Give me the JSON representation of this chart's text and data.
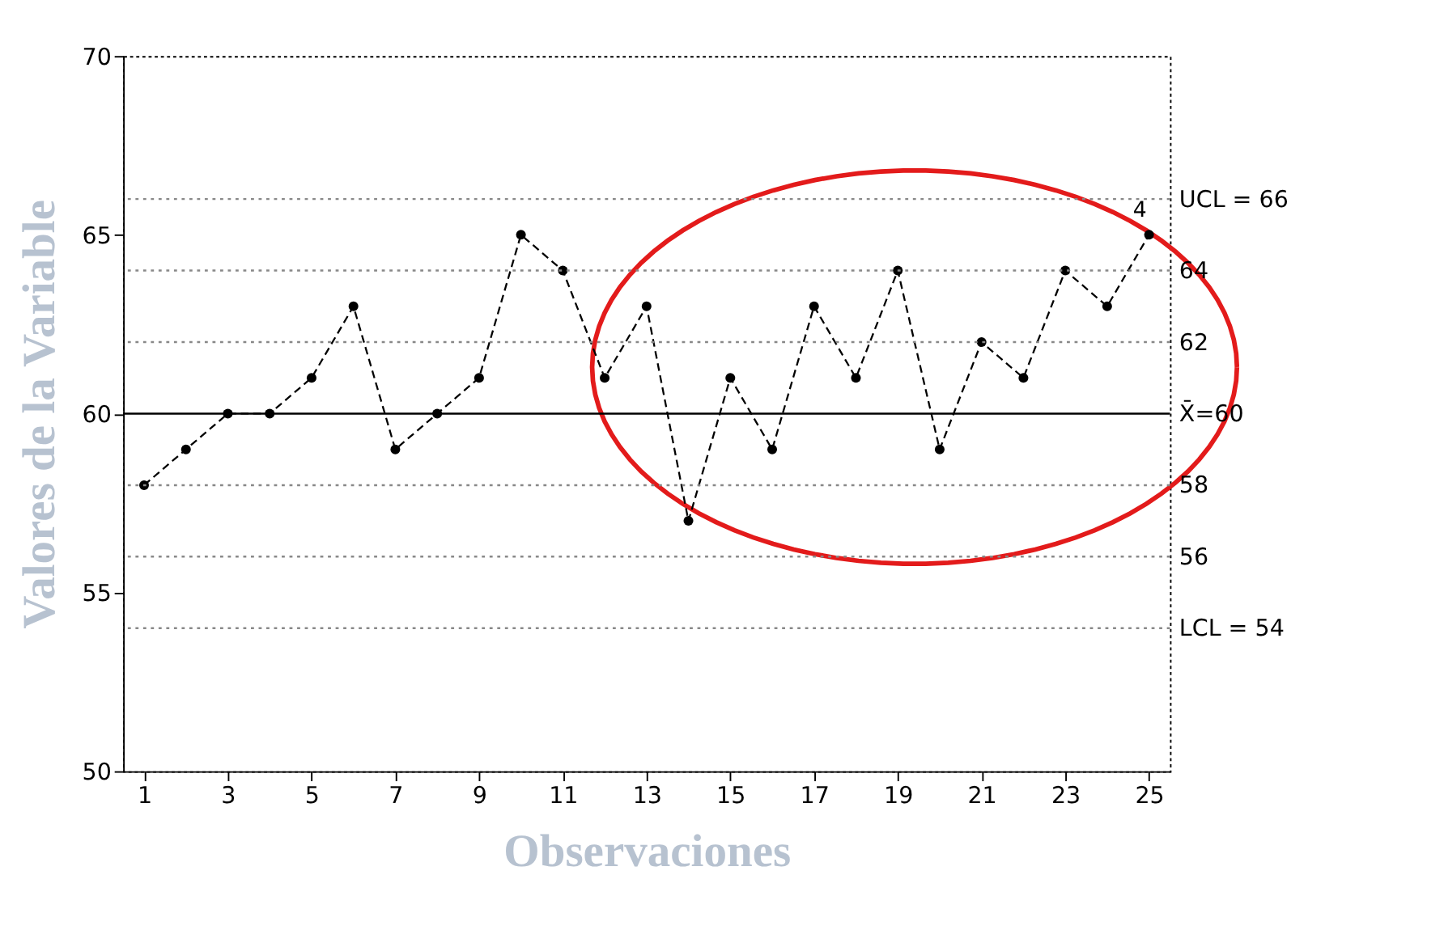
{
  "chart_data": {
    "type": "line",
    "xlabel": "Observaciones",
    "ylabel": "Valores de la Variable",
    "x": [
      1,
      2,
      3,
      4,
      5,
      6,
      7,
      8,
      9,
      10,
      11,
      12,
      13,
      14,
      15,
      16,
      17,
      18,
      19,
      20,
      21,
      22,
      23,
      24,
      25
    ],
    "series": [
      {
        "color": "#000000",
        "values": [
          58,
          59,
          60,
          60,
          61,
          63,
          59,
          60,
          61,
          65,
          64,
          61,
          63,
          57,
          61,
          59,
          63,
          61,
          64,
          59,
          62,
          61,
          64,
          63,
          65
        ]
      }
    ],
    "xlim": [
      0.5,
      25.5
    ],
    "xticks": [
      1,
      3,
      5,
      7,
      9,
      11,
      13,
      15,
      17,
      19,
      21,
      23,
      25
    ],
    "ylim": [
      50,
      70
    ],
    "yticks": [
      50,
      55,
      60,
      65,
      70
    ],
    "ref_lines": [
      {
        "axis": "y",
        "value": 66,
        "label": "UCL = 66",
        "line_style": "dotted",
        "color": "#888888"
      },
      {
        "axis": "y",
        "value": 64,
        "label": "64",
        "line_style": "dotted",
        "color": "#888888"
      },
      {
        "axis": "y",
        "value": 62,
        "label": "62",
        "line_style": "dotted",
        "color": "#888888"
      },
      {
        "axis": "y",
        "value": 60,
        "label": "X̄=60",
        "line_style": "solid",
        "color": "#000000"
      },
      {
        "axis": "y",
        "value": 58,
        "label": "58",
        "line_style": "dotted",
        "color": "#888888"
      },
      {
        "axis": "y",
        "value": 56,
        "label": "56",
        "line_style": "dotted",
        "color": "#888888"
      },
      {
        "axis": "y",
        "value": 54,
        "label": "LCL = 54",
        "line_style": "dotted",
        "color": "#888888"
      }
    ],
    "annotations": [
      {
        "text": "4",
        "x": 25,
        "y": 65
      }
    ],
    "grid": false,
    "marker": "circle",
    "line_style": "dashed"
  }
}
